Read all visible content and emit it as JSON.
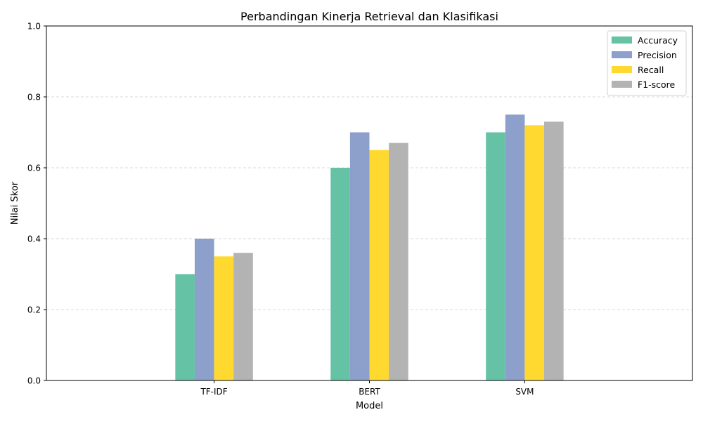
{
  "chart_data": {
    "type": "bar",
    "title": "Perbandingan Kinerja Retrieval dan Klasifikasi",
    "xlabel": "Model",
    "ylabel": "Nilai Skor",
    "categories": [
      "TF-IDF",
      "BERT",
      "SVM"
    ],
    "ylim": [
      0,
      1.0
    ],
    "yticks": [
      "0.0",
      "0.2",
      "0.4",
      "0.6",
      "0.8",
      "1.0"
    ],
    "grid": "y-dashed",
    "legend_position": "top-right",
    "series": [
      {
        "name": "Accuracy",
        "color": "#66c2a5",
        "values": [
          0.3,
          0.6,
          0.7
        ]
      },
      {
        "name": "Precision",
        "color": "#8da0cb",
        "values": [
          0.4,
          0.7,
          0.75
        ]
      },
      {
        "name": "Recall",
        "color": "#ffd92f",
        "values": [
          0.35,
          0.65,
          0.72
        ]
      },
      {
        "name": "F1-score",
        "color": "#b3b3b3",
        "values": [
          0.36,
          0.67,
          0.73
        ]
      }
    ]
  }
}
